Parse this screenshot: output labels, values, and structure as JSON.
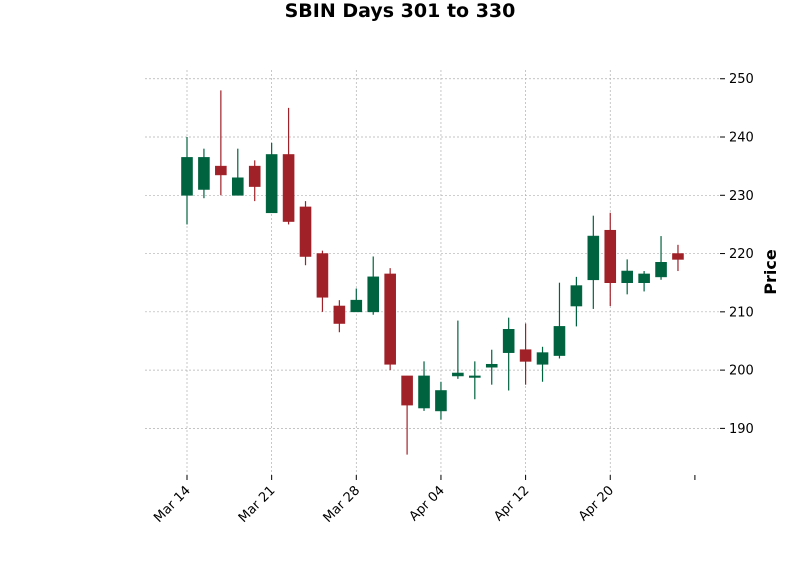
{
  "chart_data": {
    "type": "candlestick",
    "title": "SBIN Days 301 to 330",
    "xlabel": "",
    "ylabel": "Price",
    "ylim": [
      182,
      251.5
    ],
    "yticks": [
      190,
      200,
      210,
      220,
      230,
      240,
      250
    ],
    "xtick_labels": [
      "Mar 14",
      "Mar 21",
      "Mar 28",
      "Apr 04",
      "Apr 12",
      "Apr 20",
      ""
    ],
    "xtick_index": [
      0,
      5,
      10,
      15,
      20,
      25,
      30
    ],
    "grid": true,
    "colors": {
      "up": "#006340",
      "down": "#a02128",
      "grid": "#b0b0b0"
    },
    "candles": [
      {
        "o": 230.0,
        "h": 240.0,
        "l": 225.0,
        "c": 236.5
      },
      {
        "o": 231.0,
        "h": 238.0,
        "l": 229.5,
        "c": 236.5
      },
      {
        "o": 235.0,
        "h": 248.0,
        "l": 230.0,
        "c": 233.5
      },
      {
        "o": 230.0,
        "h": 238.0,
        "l": 230.0,
        "c": 233.0
      },
      {
        "o": 235.0,
        "h": 236.0,
        "l": 229.0,
        "c": 231.5
      },
      {
        "o": 227.0,
        "h": 239.0,
        "l": 227.0,
        "c": 237.0
      },
      {
        "o": 237.0,
        "h": 245.0,
        "l": 225.0,
        "c": 225.5
      },
      {
        "o": 228.0,
        "h": 229.0,
        "l": 218.0,
        "c": 219.5
      },
      {
        "o": 220.0,
        "h": 220.5,
        "l": 210.0,
        "c": 212.5
      },
      {
        "o": 211.0,
        "h": 212.0,
        "l": 206.5,
        "c": 208.0
      },
      {
        "o": 210.0,
        "h": 214.0,
        "l": 210.0,
        "c": 212.0
      },
      {
        "o": 210.0,
        "h": 219.5,
        "l": 209.5,
        "c": 216.0
      },
      {
        "o": 216.5,
        "h": 217.5,
        "l": 200.0,
        "c": 201.0
      },
      {
        "o": 199.0,
        "h": 199.0,
        "l": 185.5,
        "c": 194.0
      },
      {
        "o": 193.5,
        "h": 201.5,
        "l": 193.0,
        "c": 199.0
      },
      {
        "o": 193.0,
        "h": 198.0,
        "l": 191.5,
        "c": 196.5
      },
      {
        "o": 199.0,
        "h": 208.5,
        "l": 198.5,
        "c": 199.5
      },
      {
        "o": 199.0,
        "h": 201.5,
        "l": 195.0,
        "c": 199.0
      },
      {
        "o": 200.5,
        "h": 203.5,
        "l": 197.5,
        "c": 201.0
      },
      {
        "o": 203.0,
        "h": 209.0,
        "l": 196.5,
        "c": 207.0
      },
      {
        "o": 203.5,
        "h": 208.0,
        "l": 197.5,
        "c": 201.5
      },
      {
        "o": 201.0,
        "h": 204.0,
        "l": 198.0,
        "c": 203.0
      },
      {
        "o": 202.5,
        "h": 215.0,
        "l": 202.0,
        "c": 207.5
      },
      {
        "o": 211.0,
        "h": 216.0,
        "l": 207.5,
        "c": 214.5
      },
      {
        "o": 215.5,
        "h": 226.5,
        "l": 210.5,
        "c": 223.0
      },
      {
        "o": 224.0,
        "h": 227.0,
        "l": 211.0,
        "c": 215.0
      },
      {
        "o": 215.0,
        "h": 219.0,
        "l": 213.0,
        "c": 217.0
      },
      {
        "o": 215.0,
        "h": 217.0,
        "l": 213.5,
        "c": 216.5
      },
      {
        "o": 216.0,
        "h": 223.0,
        "l": 215.5,
        "c": 218.5
      },
      {
        "o": 220.0,
        "h": 221.5,
        "l": 217.0,
        "c": 219.0
      }
    ]
  }
}
